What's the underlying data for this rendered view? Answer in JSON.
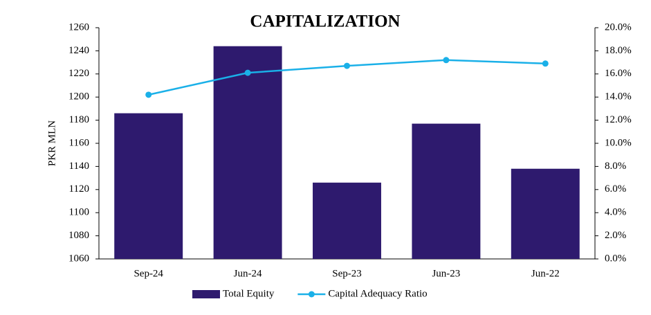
{
  "chart_data": {
    "type": "bar",
    "title": "CAPITALIZATION",
    "y_label": "PKR MLN",
    "categories": [
      "Sep-24",
      "Jun-24",
      "Sep-23",
      "Jun-23",
      "Jun-22"
    ],
    "series": [
      {
        "name": "Total Equity",
        "type": "bar",
        "color": "#2e1a6e",
        "values": [
          1186,
          1244,
          1126,
          1177,
          1138
        ]
      },
      {
        "name": "Capital Adequacy Ratio",
        "type": "line",
        "axis": "y2",
        "color": "#1ab0e8",
        "values": [
          14.2,
          16.1,
          16.7,
          17.2,
          16.9
        ]
      }
    ],
    "ylim": [
      1060,
      1260
    ],
    "yticks": [
      1060,
      1080,
      1100,
      1120,
      1140,
      1160,
      1180,
      1200,
      1220,
      1240,
      1260
    ],
    "y2lim": [
      0,
      20
    ],
    "y2ticks": [
      {
        "value": 0,
        "label": "0.0%"
      },
      {
        "value": 2,
        "label": "2.0%"
      },
      {
        "value": 4,
        "label": "4.0%"
      },
      {
        "value": 6,
        "label": "6.0%"
      },
      {
        "value": 8,
        "label": "8.0%"
      },
      {
        "value": 10,
        "label": "10.0%"
      },
      {
        "value": 12,
        "label": "12.0%"
      },
      {
        "value": 14,
        "label": "14.0%"
      },
      {
        "value": 16,
        "label": "16.0%"
      },
      {
        "value": 18,
        "label": "18.0%"
      },
      {
        "value": 20,
        "label": "20.0%"
      }
    ],
    "grid": false,
    "legend": "bottom"
  }
}
